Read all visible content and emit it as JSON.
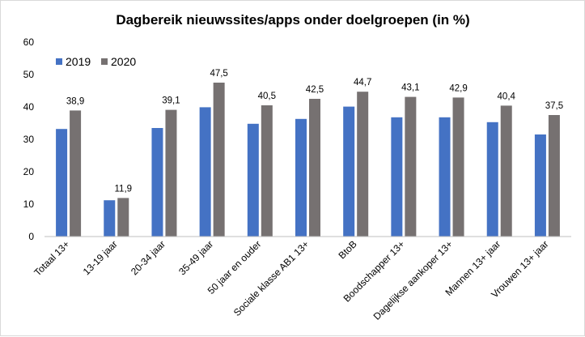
{
  "chart_data": {
    "type": "bar",
    "title": "Dagbereik nieuwssites/apps onder doelgroepen (in %)",
    "xlabel": "",
    "ylabel": "",
    "ylim": [
      0,
      60
    ],
    "yticks": [
      "0",
      "10",
      "20",
      "30",
      "40",
      "50",
      "60"
    ],
    "grid": false,
    "legend_position": "top-left",
    "categories": [
      "Totaal 13+",
      "13-19 jaar",
      "20-34 jaar",
      "35-49 jaar",
      "50 jaar en ouder",
      "Sociale klasse AB1 13+",
      "BtoB",
      "Boodschapper 13+",
      "Dagelijkse aankoper 13+",
      "Mannen 13+ jaar",
      "Vrouwen 13+ jaar"
    ],
    "series": [
      {
        "name": "2019",
        "color": "#4472c4",
        "values": [
          33.2,
          11.2,
          33.5,
          39.9,
          34.8,
          36.3,
          40.1,
          36.8,
          36.8,
          35.3,
          31.5
        ]
      },
      {
        "name": "2020",
        "color": "#767171",
        "values": [
          38.9,
          11.9,
          39.1,
          47.5,
          40.5,
          42.5,
          44.7,
          43.1,
          42.9,
          40.4,
          37.5
        ],
        "labels": [
          "38,9",
          "11,9",
          "39,1",
          "47,5",
          "40,5",
          "42,5",
          "44,7",
          "43,1",
          "42,9",
          "40,4",
          "37,5"
        ]
      }
    ]
  }
}
